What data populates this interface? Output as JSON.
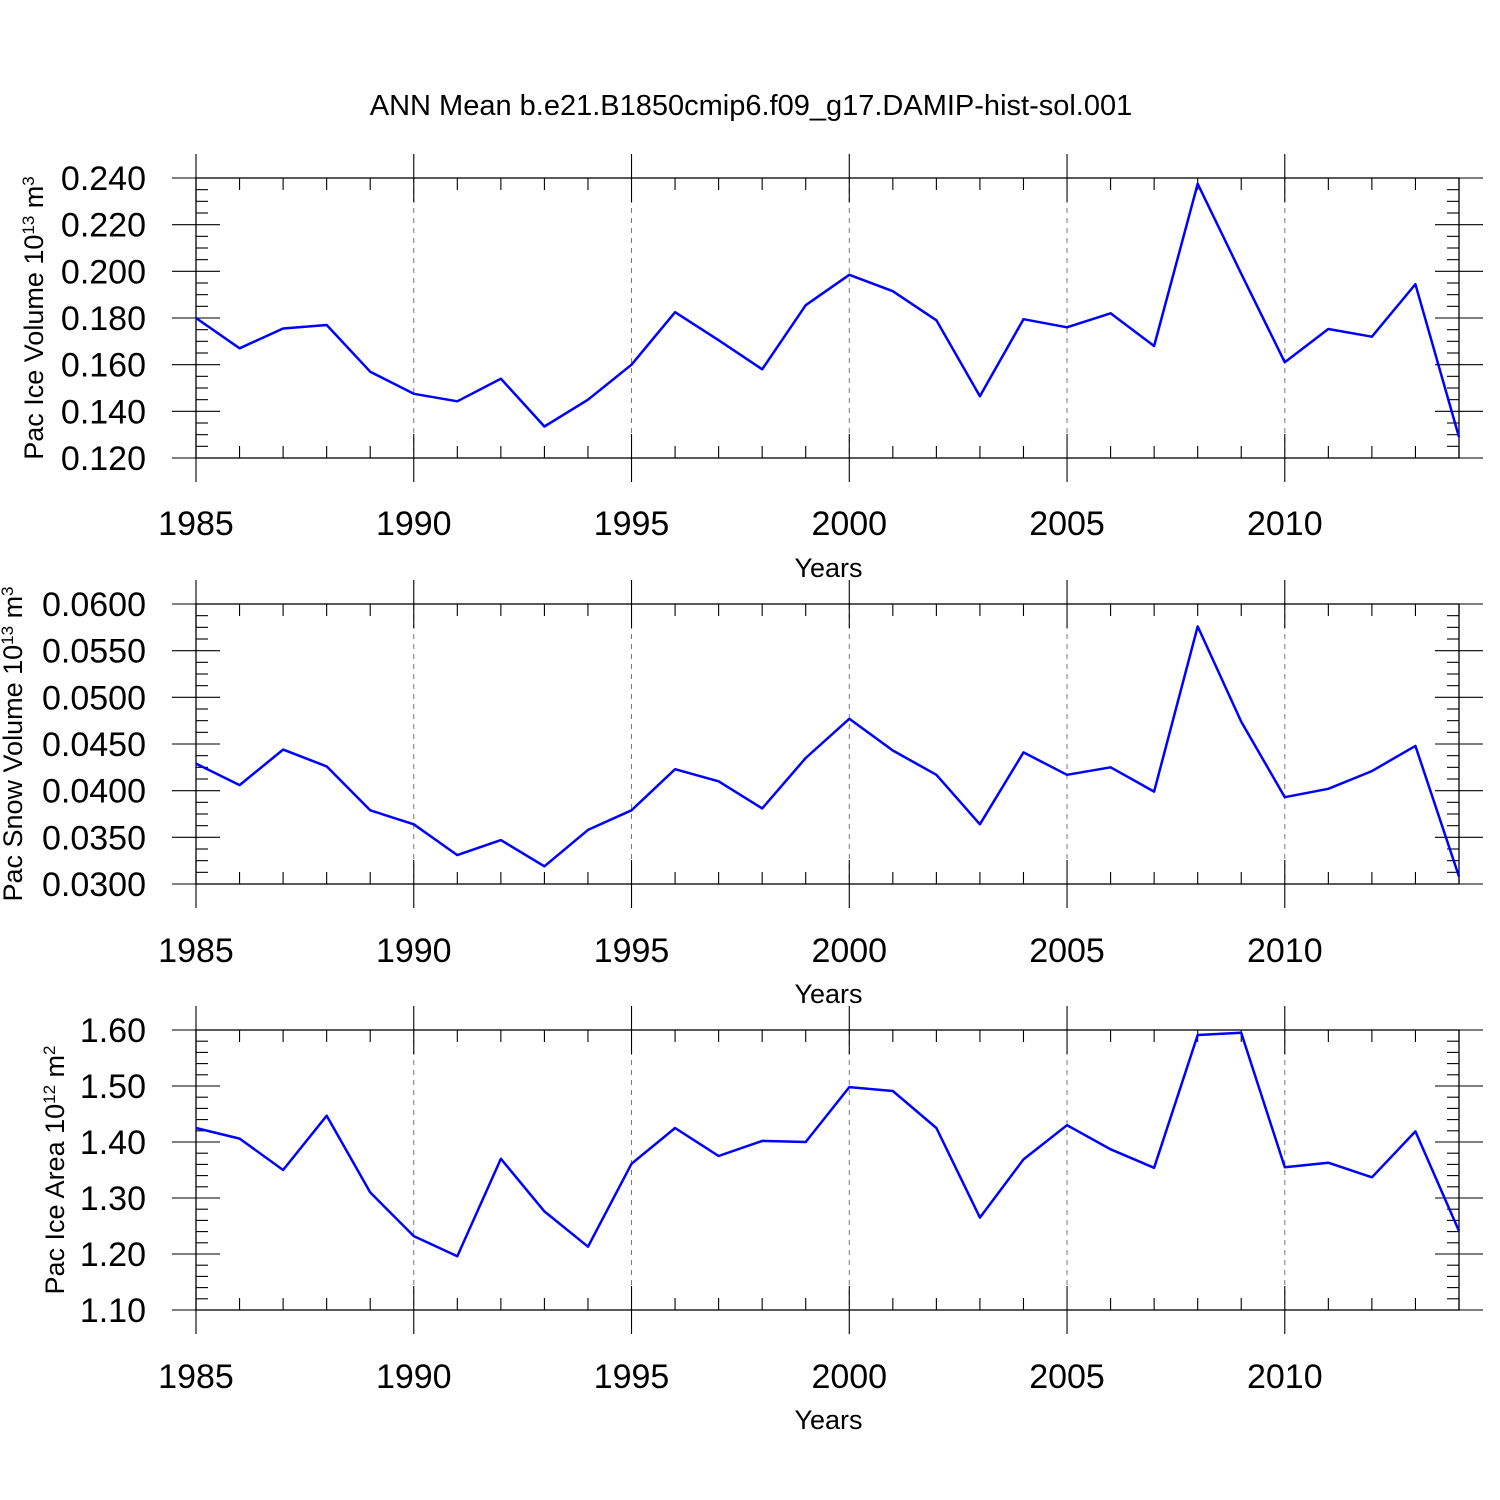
{
  "title": "ANN Mean b.e21.B1850cmip6.f09_g17.DAMIP-hist-sol.001",
  "colors": {
    "series": "#0000ff",
    "axis": "#000000",
    "grid": "#777777"
  },
  "chart_data": [
    {
      "type": "line",
      "xlabel": "Years",
      "ylabel": {
        "prefix": "Pac Ice Volume 10",
        "exp": "13",
        "unit": " m",
        "unit_exp": "3"
      },
      "xlim": [
        1985,
        2014
      ],
      "ylim": [
        0.12,
        0.24
      ],
      "xticks": [
        1985,
        1990,
        1995,
        2000,
        2005,
        2010
      ],
      "xtick_labels": [
        "1985",
        "1990",
        "1995",
        "2000",
        "2005",
        "2010"
      ],
      "yticks": [
        0.12,
        0.14,
        0.16,
        0.18,
        0.2,
        0.22,
        0.24
      ],
      "ytick_labels": [
        "0.120",
        "0.140",
        "0.160",
        "0.180",
        "0.200",
        "0.220",
        "0.240"
      ],
      "yminor_step": 0.005,
      "x": [
        1985,
        1986,
        1987,
        1988,
        1989,
        1990,
        1991,
        1992,
        1993,
        1994,
        1995,
        1996,
        1997,
        1998,
        1999,
        2000,
        2001,
        2002,
        2003,
        2004,
        2005,
        2006,
        2007,
        2008,
        2009,
        2010,
        2011,
        2012,
        2013,
        2014
      ],
      "values": [
        0.18,
        0.167,
        0.1755,
        0.177,
        0.157,
        0.1475,
        0.1443,
        0.154,
        0.1335,
        0.145,
        0.16,
        0.1825,
        0.1705,
        0.158,
        0.1855,
        0.1985,
        0.1915,
        0.179,
        0.1465,
        0.1795,
        0.176,
        0.182,
        0.168,
        0.2375,
        0.199,
        0.161,
        0.1753,
        0.172,
        0.1945,
        0.129
      ]
    },
    {
      "type": "line",
      "xlabel": "Years",
      "ylabel": {
        "prefix": "Pac Snow Volume 10",
        "exp": "13",
        "unit": " m",
        "unit_exp": "3"
      },
      "xlim": [
        1985,
        2014
      ],
      "ylim": [
        0.03,
        0.06
      ],
      "xticks": [
        1985,
        1990,
        1995,
        2000,
        2005,
        2010
      ],
      "xtick_labels": [
        "1985",
        "1990",
        "1995",
        "2000",
        "2005",
        "2010"
      ],
      "yticks": [
        0.03,
        0.035,
        0.04,
        0.045,
        0.05,
        0.055,
        0.06
      ],
      "ytick_labels": [
        "0.0300",
        "0.0350",
        "0.0400",
        "0.0450",
        "0.0500",
        "0.0550",
        "0.0600"
      ],
      "yminor_step": 0.00125,
      "x": [
        1985,
        1986,
        1987,
        1988,
        1989,
        1990,
        1991,
        1992,
        1993,
        1994,
        1995,
        1996,
        1997,
        1998,
        1999,
        2000,
        2001,
        2002,
        2003,
        2004,
        2005,
        2006,
        2007,
        2008,
        2009,
        2010,
        2011,
        2012,
        2013,
        2014
      ],
      "values": [
        0.0429,
        0.0406,
        0.0444,
        0.0426,
        0.0379,
        0.0364,
        0.0331,
        0.0347,
        0.0319,
        0.0358,
        0.0379,
        0.0423,
        0.041,
        0.0381,
        0.0435,
        0.0477,
        0.0443,
        0.0417,
        0.0364,
        0.0441,
        0.0417,
        0.0425,
        0.0399,
        0.0576,
        0.0474,
        0.0393,
        0.0402,
        0.0421,
        0.0448,
        0.0308
      ]
    },
    {
      "type": "line",
      "xlabel": "Years",
      "ylabel": {
        "prefix": "Pac Ice Area 10",
        "exp": "12",
        "unit": " m",
        "unit_exp": "2"
      },
      "xlim": [
        1985,
        2014
      ],
      "ylim": [
        1.1,
        1.6
      ],
      "xticks": [
        1985,
        1990,
        1995,
        2000,
        2005,
        2010
      ],
      "xtick_labels": [
        "1985",
        "1990",
        "1995",
        "2000",
        "2005",
        "2010"
      ],
      "yticks": [
        1.1,
        1.2,
        1.3,
        1.4,
        1.5,
        1.6
      ],
      "ytick_labels": [
        "1.10",
        "1.20",
        "1.30",
        "1.40",
        "1.50",
        "1.60"
      ],
      "yminor_step": 0.02,
      "x": [
        1985,
        1986,
        1987,
        1988,
        1989,
        1990,
        1991,
        1992,
        1993,
        1994,
        1995,
        1996,
        1997,
        1998,
        1999,
        2000,
        2001,
        2002,
        2003,
        2004,
        2005,
        2006,
        2007,
        2008,
        2009,
        2010,
        2011,
        2012,
        2013,
        2014
      ],
      "values": [
        1.425,
        1.406,
        1.35,
        1.447,
        1.31,
        1.232,
        1.196,
        1.37,
        1.276,
        1.213,
        1.361,
        1.425,
        1.375,
        1.402,
        1.4,
        1.498,
        1.491,
        1.425,
        1.265,
        1.369,
        1.43,
        1.387,
        1.354,
        1.591,
        1.595,
        1.355,
        1.363,
        1.337,
        1.419,
        1.241
      ]
    }
  ]
}
